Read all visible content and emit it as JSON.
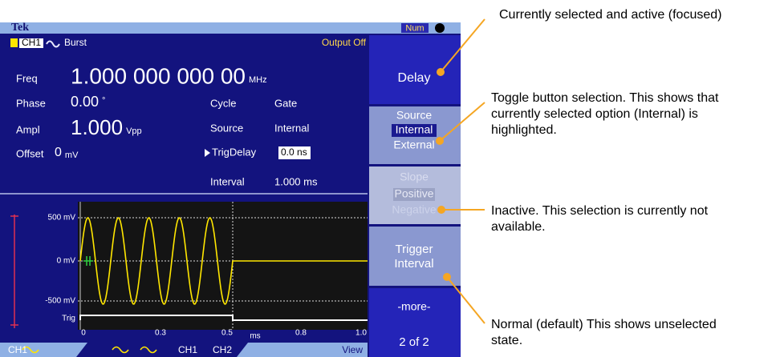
{
  "header": {
    "brand": "Tek",
    "indicator": "Num"
  },
  "status": {
    "channel": "CH1",
    "mode": "Burst",
    "output": "Output Off"
  },
  "params_left": [
    {
      "label": "Freq",
      "value": "1.000 000 000 00",
      "unit": "MHz"
    },
    {
      "label": "Phase",
      "value": "0.00",
      "unit": "°"
    },
    {
      "label": "Ampl",
      "value": "1.000",
      "unit": "Vpp"
    },
    {
      "label": "Offset",
      "value": "0",
      "unit": "mV"
    }
  ],
  "params_right": [
    {
      "label": "Cycle",
      "value": "Gate"
    },
    {
      "label": "Source",
      "value": "Internal"
    },
    {
      "label": "TrigDelay",
      "value": "0.0 ns"
    },
    {
      "label": "Interval",
      "value": "1.000 ms"
    }
  ],
  "plot": {
    "y_labels": [
      "500 mV",
      "0 mV",
      "-500 mV",
      "Trig"
    ],
    "x_labels": [
      "0",
      "0.3",
      "0.5",
      "ms",
      "0.8",
      "1.0"
    ]
  },
  "tabs": [
    "CH1",
    "CH1",
    "CH2",
    "View"
  ],
  "buttons": {
    "delay": "Delay",
    "source": {
      "title": "Source",
      "options": [
        "Internal",
        "External"
      ]
    },
    "slope": {
      "title": "Slope",
      "options": [
        "Positive",
        "Negative"
      ]
    },
    "trigger_interval": [
      "Trigger",
      "Interval"
    ],
    "more": [
      "-more-",
      "2 of 2"
    ]
  },
  "annotations": [
    [
      "Currently selected and active (focused)"
    ],
    [
      "Toggle button selection. This shows that",
      "currently selected option (Internal) is",
      "highlighted."
    ],
    [
      "Inactive. This selection is currently not",
      "available."
    ],
    [
      "Normal (default) This shows unselected",
      "state."
    ]
  ]
}
